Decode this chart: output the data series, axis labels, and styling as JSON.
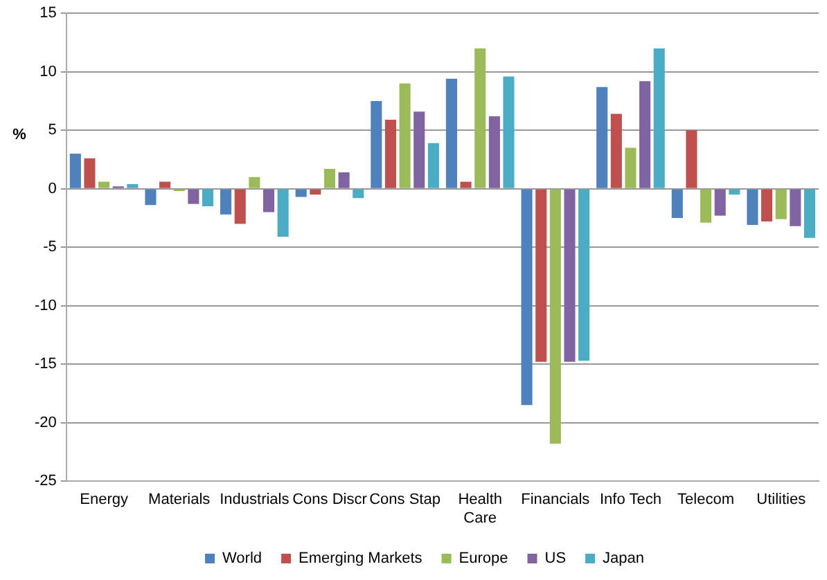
{
  "chart_data": {
    "type": "bar",
    "ylabel": "%",
    "categories": [
      "Energy",
      "Materials",
      "Industrials",
      "Cons Discr",
      "Cons Stap",
      "Health Care",
      "Financials",
      "Info Tech",
      "Telecom",
      "Utilities"
    ],
    "series": [
      {
        "name": "World",
        "color": "#4f81bd",
        "values": [
          3.0,
          -1.4,
          -2.2,
          -0.7,
          7.5,
          9.4,
          -18.5,
          8.7,
          -2.5,
          -3.1
        ]
      },
      {
        "name": "Emerging Markets",
        "color": "#c0504d",
        "values": [
          2.6,
          0.6,
          -3.0,
          -0.5,
          5.9,
          0.6,
          -14.8,
          6.4,
          5.0,
          -2.8
        ]
      },
      {
        "name": "Europe",
        "color": "#9bbb59",
        "values": [
          0.6,
          -0.2,
          1.0,
          1.7,
          9.0,
          12.0,
          -21.8,
          3.5,
          -2.9,
          -2.6
        ]
      },
      {
        "name": "US",
        "color": "#8064a2",
        "values": [
          0.2,
          -1.3,
          -2.0,
          1.4,
          6.6,
          6.2,
          -14.8,
          9.2,
          -2.3,
          -3.2
        ]
      },
      {
        "name": "Japan",
        "color": "#4bacc6",
        "values": [
          0.4,
          -1.5,
          -4.1,
          -0.8,
          3.9,
          9.6,
          -14.7,
          12.0,
          -0.5,
          -4.2
        ]
      }
    ],
    "ylim": [
      -25,
      15
    ],
    "yticks": [
      -25,
      -20,
      -15,
      -10,
      -5,
      0,
      5,
      10,
      15
    ],
    "grid": "y",
    "legend": "bottom"
  }
}
